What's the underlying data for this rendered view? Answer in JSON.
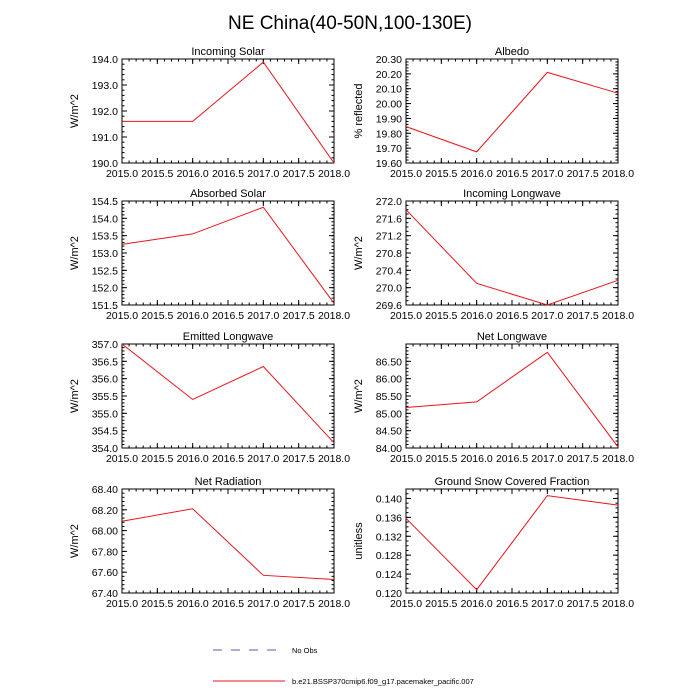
{
  "figure": {
    "title": "NE China(40-50N,100-130E)"
  },
  "chart_data": [
    {
      "type": "line",
      "title": "Incoming Solar",
      "ylabel": "W/m^2",
      "xlabel": "",
      "x": [
        2015.0,
        2016.0,
        2017.0,
        2018.0
      ],
      "series": [
        {
          "name": "b.e21.BSSP370cmip6.f09_g17.pacemaker_pacific.007",
          "values": [
            191.6,
            191.6,
            193.88,
            190.0
          ]
        }
      ],
      "xlim": [
        2015.0,
        2018.0
      ],
      "ylim": [
        190.0,
        194.0
      ],
      "xticks": [
        "2015.0",
        "2015.5",
        "2016.0",
        "2016.5",
        "2017.0",
        "2017.5",
        "2018.0"
      ],
      "yticks": [
        "190.0",
        "191.0",
        "192.0",
        "193.0",
        "194.0"
      ],
      "yminor_step": 0.2,
      "grid": false
    },
    {
      "type": "line",
      "title": "Albedo",
      "ylabel": "% reflected",
      "xlabel": "",
      "x": [
        2015.0,
        2016.0,
        2017.0,
        2018.0
      ],
      "series": [
        {
          "name": "b.e21.BSSP370cmip6.f09_g17.pacemaker_pacific.007",
          "values": [
            19.845,
            19.675,
            20.21,
            20.07
          ]
        }
      ],
      "xlim": [
        2015.0,
        2018.0
      ],
      "ylim": [
        19.6,
        20.3
      ],
      "xticks": [
        "2015.0",
        "2015.5",
        "2016.0",
        "2016.5",
        "2017.0",
        "2017.5",
        "2018.0"
      ],
      "yticks": [
        "19.60",
        "19.70",
        "19.80",
        "19.90",
        "20.00",
        "20.10",
        "20.20",
        "20.30"
      ],
      "yminor_step": 0.02,
      "grid": false
    },
    {
      "type": "line",
      "title": "Absorbed Solar",
      "ylabel": "W/m^2",
      "xlabel": "",
      "x": [
        2015.0,
        2016.0,
        2017.0,
        2018.0
      ],
      "series": [
        {
          "name": "b.e21.BSSP370cmip6.f09_g17.pacemaker_pacific.007",
          "values": [
            153.25,
            153.55,
            154.32,
            151.55
          ]
        }
      ],
      "xlim": [
        2015.0,
        2018.0
      ],
      "ylim": [
        151.5,
        154.5
      ],
      "xticks": [
        "2015.0",
        "2015.5",
        "2016.0",
        "2016.5",
        "2017.0",
        "2017.5",
        "2018.0"
      ],
      "yticks": [
        "151.5",
        "152.0",
        "152.5",
        "153.0",
        "153.5",
        "154.0",
        "154.5"
      ],
      "yminor_step": 0.1,
      "grid": false
    },
    {
      "type": "line",
      "title": "Incoming Longwave",
      "ylabel": "W/m^2",
      "xlabel": "",
      "x": [
        2015.0,
        2016.0,
        2017.0,
        2018.0
      ],
      "series": [
        {
          "name": "b.e21.BSSP370cmip6.f09_g17.pacemaker_pacific.007",
          "values": [
            271.8,
            270.1,
            269.6,
            270.17
          ]
        }
      ],
      "xlim": [
        2015.0,
        2018.0
      ],
      "ylim": [
        269.6,
        272.0
      ],
      "xticks": [
        "2015.0",
        "2015.5",
        "2016.0",
        "2016.5",
        "2017.0",
        "2017.5",
        "2018.0"
      ],
      "yticks": [
        "269.6",
        "270.0",
        "270.4",
        "270.8",
        "271.2",
        "271.6",
        "272.0"
      ],
      "yminor_step": 0.1,
      "grid": false
    },
    {
      "type": "line",
      "title": "Emitted Longwave",
      "ylabel": "W/m^2",
      "xlabel": "",
      "x": [
        2015.0,
        2016.0,
        2017.0,
        2018.0
      ],
      "series": [
        {
          "name": "b.e21.BSSP370cmip6.f09_g17.pacemaker_pacific.007",
          "values": [
            357.0,
            355.4,
            356.35,
            354.15
          ]
        }
      ],
      "xlim": [
        2015.0,
        2018.0
      ],
      "ylim": [
        354.0,
        357.0
      ],
      "xticks": [
        "2015.0",
        "2015.5",
        "2016.0",
        "2016.5",
        "2017.0",
        "2017.5",
        "2018.0"
      ],
      "yticks": [
        "354.0",
        "354.5",
        "355.0",
        "355.5",
        "356.0",
        "356.5",
        "357.0"
      ],
      "yminor_step": 0.1,
      "grid": false
    },
    {
      "type": "line",
      "title": "Net Longwave",
      "ylabel": "W/m^2",
      "xlabel": "",
      "x": [
        2015.0,
        2016.0,
        2017.0,
        2018.0
      ],
      "series": [
        {
          "name": "b.e21.BSSP370cmip6.f09_g17.pacemaker_pacific.007",
          "values": [
            85.17,
            85.33,
            86.76,
            84.03
          ]
        }
      ],
      "xlim": [
        2015.0,
        2018.0
      ],
      "ylim": [
        84.0,
        87.0
      ],
      "xticks": [
        "2015.0",
        "2015.5",
        "2016.0",
        "2016.5",
        "2017.0",
        "2017.5",
        "2018.0"
      ],
      "yticks": [
        "84.00",
        "84.50",
        "85.00",
        "85.50",
        "86.00",
        "86.50"
      ],
      "yminor_step": 0.1,
      "grid": false
    },
    {
      "type": "line",
      "title": "Net Radiation",
      "ylabel": "W/m^2",
      "xlabel": "",
      "x": [
        2015.0,
        2016.0,
        2017.0,
        2018.0
      ],
      "series": [
        {
          "name": "b.e21.BSSP370cmip6.f09_g17.pacemaker_pacific.007",
          "values": [
            68.09,
            68.21,
            67.57,
            67.53
          ]
        }
      ],
      "xlim": [
        2015.0,
        2018.0
      ],
      "ylim": [
        67.4,
        68.4
      ],
      "xticks": [
        "2015.0",
        "2015.5",
        "2016.0",
        "2016.5",
        "2017.0",
        "2017.5",
        "2018.0"
      ],
      "yticks": [
        "67.40",
        "67.60",
        "67.80",
        "68.00",
        "68.20",
        "68.40"
      ],
      "yminor_step": 0.04,
      "grid": false
    },
    {
      "type": "line",
      "title": "Ground Snow Covered Fraction",
      "ylabel": "unitless",
      "xlabel": "",
      "x": [
        2015.0,
        2016.0,
        2017.0,
        2018.0
      ],
      "series": [
        {
          "name": "b.e21.BSSP370cmip6.f09_g17.pacemaker_pacific.007",
          "values": [
            0.1358,
            0.1207,
            0.1406,
            0.1386
          ]
        }
      ],
      "xlim": [
        2015.0,
        2018.0
      ],
      "ylim": [
        0.12,
        0.142
      ],
      "xticks": [
        "2015.0",
        "2015.5",
        "2016.0",
        "2016.5",
        "2017.0",
        "2017.5",
        "2018.0"
      ],
      "yticks": [
        "0.120",
        "0.124",
        "0.128",
        "0.132",
        "0.136",
        "0.140"
      ],
      "yminor_step": 0.001,
      "grid": false
    }
  ],
  "legend": {
    "placement": "bottom-center",
    "entries": [
      {
        "label": "No Obs",
        "style": "dashed",
        "color": "#5a5aa8"
      },
      {
        "label": "b.e21.BSSP370cmip6.f09_g17.pacemaker_pacific.007",
        "style": "solid",
        "color": "#e8141c"
      }
    ]
  }
}
